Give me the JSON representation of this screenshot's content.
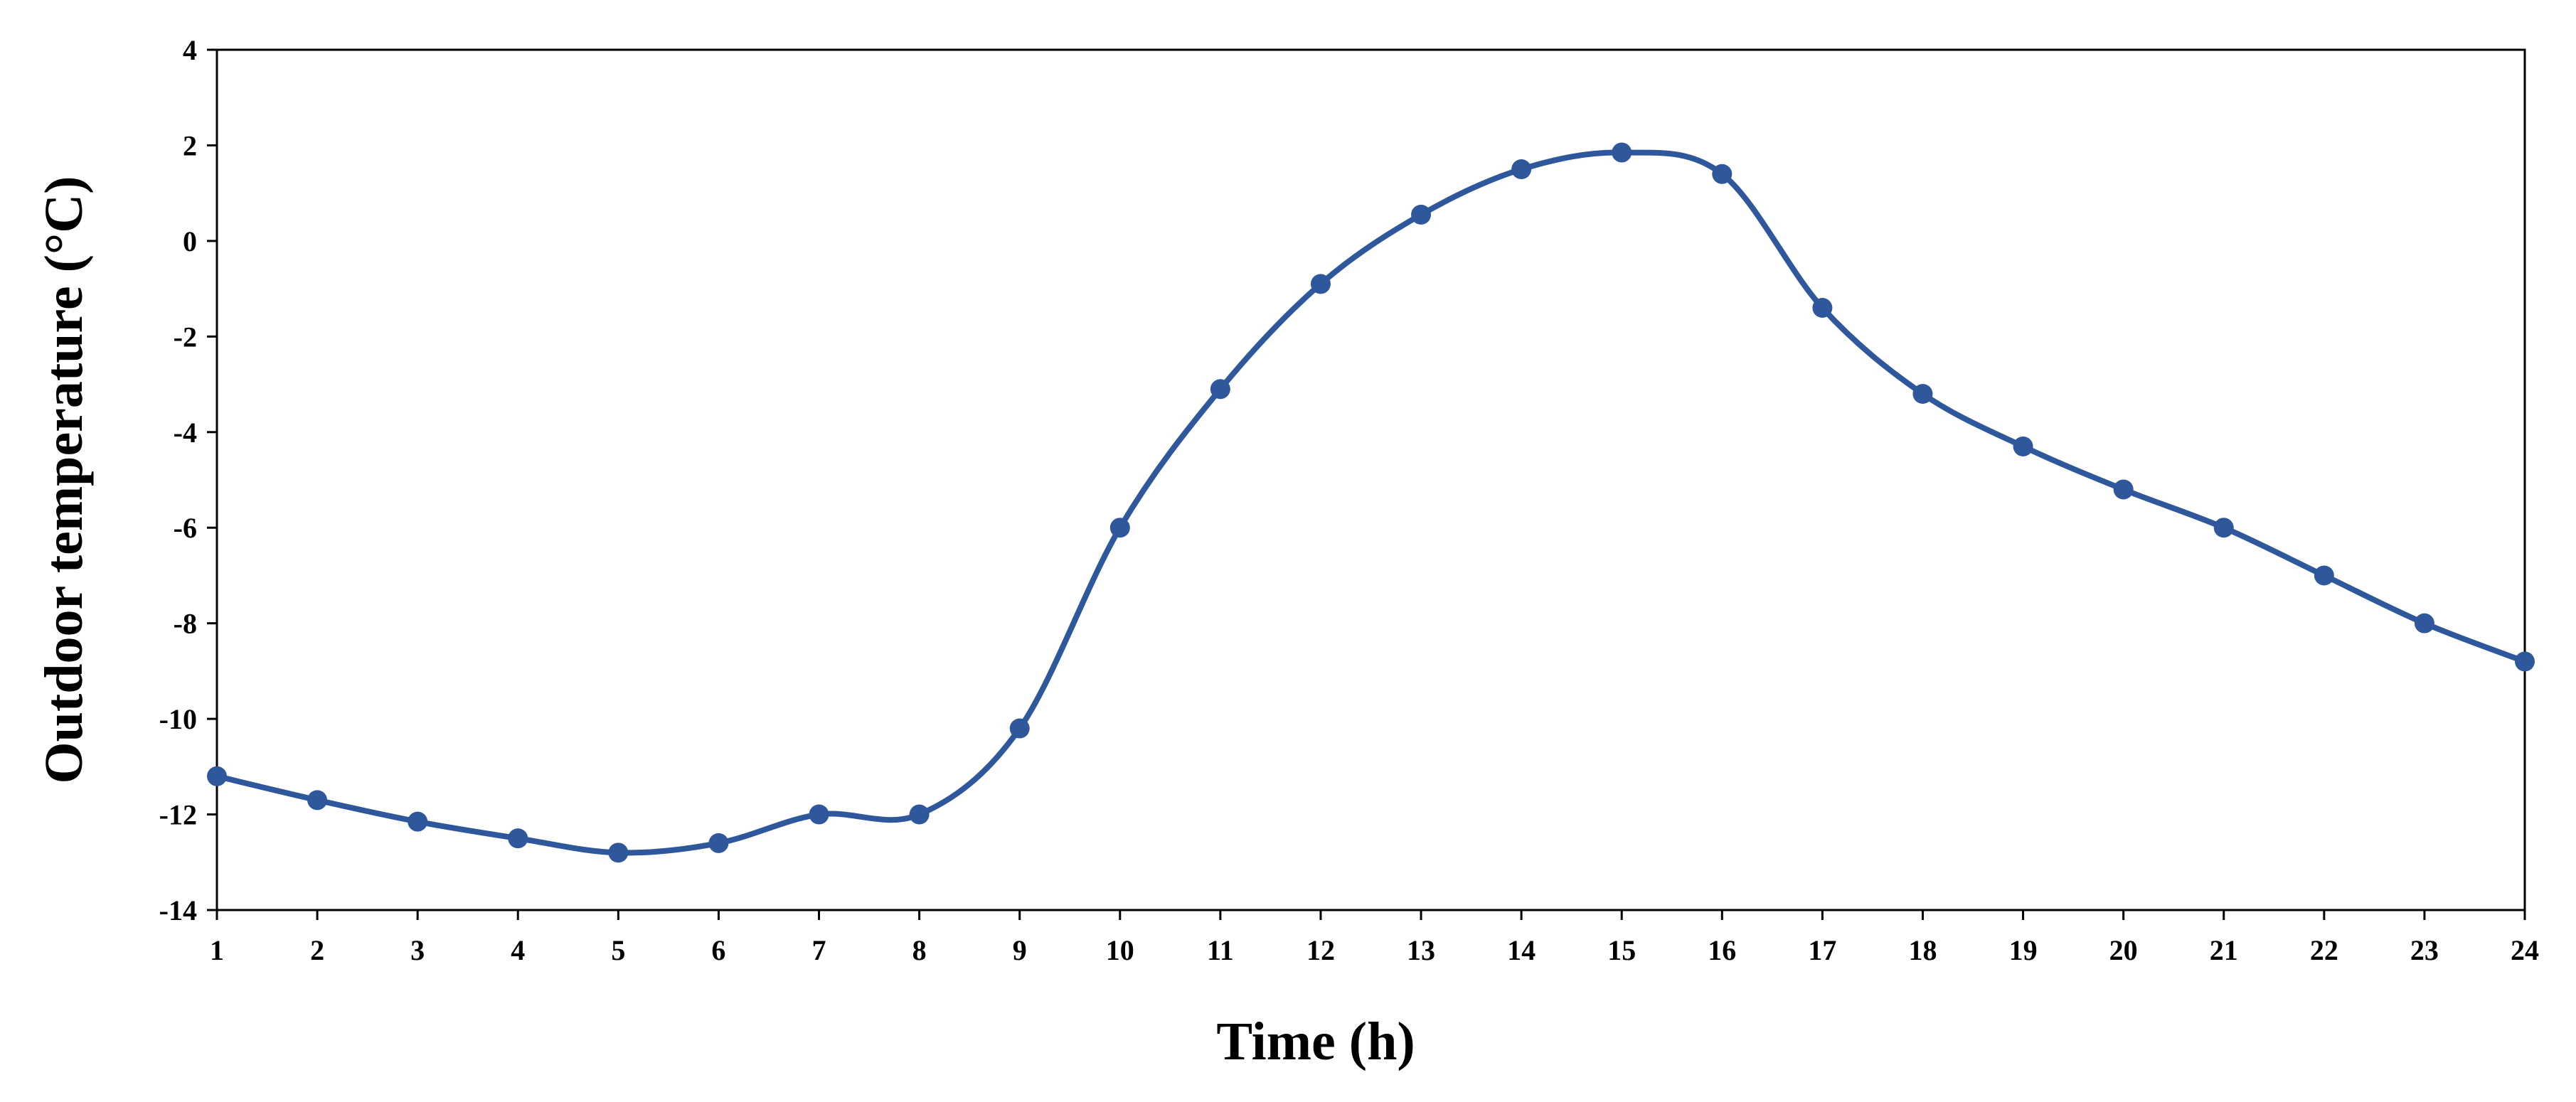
{
  "chart_data": {
    "type": "line",
    "title": "",
    "xlabel": "Time (h)",
    "ylabel": "Outdoor temperature (°C)",
    "x": [
      1,
      2,
      3,
      4,
      5,
      6,
      7,
      8,
      9,
      10,
      11,
      12,
      13,
      14,
      15,
      16,
      17,
      18,
      19,
      20,
      21,
      22,
      23,
      24
    ],
    "series": [
      {
        "name": "Outdoor temperature",
        "color": "#2f579c",
        "values": [
          -11.2,
          -11.7,
          -12.15,
          -12.5,
          -12.8,
          -12.6,
          -12.0,
          -12.0,
          -10.2,
          -6.0,
          -3.1,
          -0.9,
          0.55,
          1.5,
          1.85,
          1.4,
          -1.4,
          -3.2,
          -4.3,
          -5.2,
          -6.0,
          -7.0,
          -8.0,
          -8.8
        ]
      }
    ],
    "xlim": [
      1,
      24
    ],
    "ylim": [
      -14,
      4
    ],
    "x_ticks": [
      "1",
      "2",
      "3",
      "4",
      "5",
      "6",
      "7",
      "8",
      "9",
      "10",
      "11",
      "12",
      "13",
      "14",
      "15",
      "16",
      "17",
      "18",
      "19",
      "20",
      "21",
      "22",
      "23",
      "24"
    ],
    "y_ticks": [
      "4",
      "2",
      "0",
      "-2",
      "-4",
      "-6",
      "-8",
      "-10",
      "-12",
      "-14"
    ],
    "y_tick_values": [
      4,
      2,
      0,
      -2,
      -4,
      -6,
      -8,
      -10,
      -12,
      -14
    ],
    "grid": false,
    "legend": "none"
  }
}
